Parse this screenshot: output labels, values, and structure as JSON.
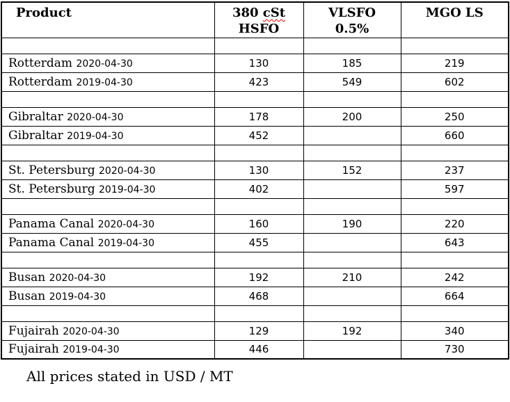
{
  "colors": {
    "background": "#ffffff",
    "text": "#000000",
    "table_border": "#000000",
    "spellcheck_underline": "#dd0000"
  },
  "table": {
    "header": {
      "product": "Product",
      "hsfo_line1_prefix": "380 ",
      "hsfo_line1_flagged": "cSt",
      "hsfo_line2": "HSFO",
      "vlsfo_line1": "VLSFO",
      "vlsfo_line2": "0.5%",
      "mgo": "MGO LS"
    },
    "rows": [
      {
        "port": "Rotterdam",
        "date": "2020-04-30",
        "hsfo": "130",
        "vlsfo": "185",
        "mgo": "219"
      },
      {
        "port": "Rotterdam",
        "date": "2019-04-30",
        "hsfo": "423",
        "vlsfo": "549",
        "mgo": "602"
      },
      {
        "port": "Gibraltar",
        "date": "2020-04-30",
        "hsfo": "178",
        "vlsfo": "200",
        "mgo": "250"
      },
      {
        "port": "Gibraltar",
        "date": "2019-04-30",
        "hsfo": "452",
        "vlsfo": "",
        "mgo": "660"
      },
      {
        "port": "St. Petersburg",
        "date": "2020-04-30",
        "hsfo": "130",
        "vlsfo": "152",
        "mgo": "237"
      },
      {
        "port": "St. Petersburg",
        "date": "2019-04-30",
        "hsfo": "402",
        "vlsfo": "",
        "mgo": "597"
      },
      {
        "port": "Panama Canal",
        "date": "2020-04-30",
        "hsfo": "160",
        "vlsfo": "190",
        "mgo": "220"
      },
      {
        "port": "Panama Canal",
        "date": "2019-04-30",
        "hsfo": "455",
        "vlsfo": "",
        "mgo": "643"
      },
      {
        "port": "Busan",
        "date": "2020-04-30",
        "hsfo": "192",
        "vlsfo": "210",
        "mgo": "242"
      },
      {
        "port": "Busan",
        "date": "2019-04-30",
        "hsfo": "468",
        "vlsfo": "",
        "mgo": "664"
      },
      {
        "port": "Fujairah",
        "date": "2020-04-30",
        "hsfo": "129",
        "vlsfo": "192",
        "mgo": "340"
      },
      {
        "port": "Fujairah",
        "date": "2019-04-30",
        "hsfo": "446",
        "vlsfo": "",
        "mgo": "730"
      }
    ]
  },
  "footer": {
    "note": "All prices stated in USD / MT"
  }
}
